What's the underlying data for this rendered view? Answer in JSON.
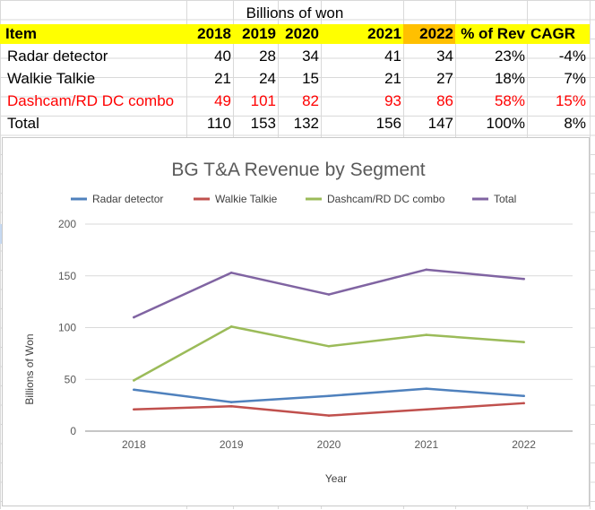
{
  "table": {
    "caption": "Billions of won",
    "headers": [
      "Item",
      "2018",
      "2019",
      "2020",
      "2021",
      "2022",
      "% of Rev",
      "CAGR"
    ],
    "rows": [
      {
        "item": "Radar detector",
        "v2018": "40",
        "v2019": "28",
        "v2020": "34",
        "v2021": "41",
        "v2022": "34",
        "pct": "23%",
        "cagr": "-4%"
      },
      {
        "item": "Walkie Talkie",
        "v2018": "21",
        "v2019": "24",
        "v2020": "15",
        "v2021": "21",
        "v2022": "27",
        "pct": "18%",
        "cagr": "7%"
      },
      {
        "item": "Dashcam/RD DC combo",
        "v2018": "49",
        "v2019": "101",
        "v2020": "82",
        "v2021": "93",
        "v2022": "86",
        "pct": "58%",
        "cagr": "15%"
      },
      {
        "item": "Total",
        "v2018": "110",
        "v2019": "153",
        "v2020": "132",
        "v2021": "156",
        "v2022": "147",
        "pct": "100%",
        "cagr": "8%"
      }
    ],
    "colors": {
      "header_bg": "#ffff00",
      "highlight_bg": "#ffc000",
      "emphasis_text": "#ff0000"
    }
  },
  "chart_data": {
    "type": "line",
    "title": "BG T&A Revenue by Segment",
    "xlabel": "Year",
    "ylabel": "Billions of Won",
    "categories": [
      "2018",
      "2019",
      "2020",
      "2021",
      "2022"
    ],
    "ylim": [
      0,
      200
    ],
    "yticks": [
      0,
      50,
      100,
      150,
      200
    ],
    "grid": true,
    "legend_position": "top",
    "series": [
      {
        "name": "Radar detector",
        "values": [
          40,
          28,
          34,
          41,
          34
        ],
        "color": "#4f81bd"
      },
      {
        "name": "Walkie Talkie",
        "values": [
          21,
          24,
          15,
          21,
          27
        ],
        "color": "#c0504d"
      },
      {
        "name": "Dashcam/RD DC combo",
        "values": [
          49,
          101,
          82,
          93,
          86
        ],
        "color": "#9bbb59"
      },
      {
        "name": "Total",
        "values": [
          110,
          153,
          132,
          156,
          147
        ],
        "color": "#8064a2"
      }
    ]
  }
}
